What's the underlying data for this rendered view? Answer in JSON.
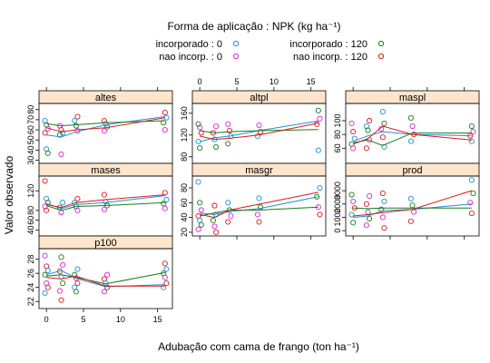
{
  "chart_data": {
    "type": "scatter",
    "title": "Forma de aplicação : NPK (kg ha⁻¹)",
    "xlabel": "Adubação com cama de frango (ton ha⁻¹)",
    "ylabel": "Valor observado",
    "legend": {
      "placement": "top",
      "entries": [
        {
          "label": "incorporado : 0",
          "color": "#1f8fd6"
        },
        {
          "label": "incorporado : 120",
          "color": "#1a7a1a"
        },
        {
          "label": "nao incorp. : 0",
          "color": "#e020e0"
        },
        {
          "label": "nao incorp. : 120",
          "color": "#e01818"
        }
      ]
    },
    "x_levels": [
      0,
      2,
      4,
      8,
      16
    ],
    "xticks": [
      0,
      5,
      10,
      15
    ],
    "xlim": [
      -1,
      17
    ],
    "grid": false,
    "panels": [
      {
        "name": "altes",
        "ylim": [
          27,
          86
        ],
        "yticks": [
          30,
          40,
          50,
          60,
          70,
          80
        ],
        "points": [
          [
            0,
            69
          ],
          [
            0,
            65
          ],
          [
            0,
            61
          ],
          [
            0,
            57
          ],
          [
            0,
            41
          ],
          [
            0,
            37
          ],
          [
            2,
            64
          ],
          [
            2,
            60
          ],
          [
            2,
            57
          ],
          [
            2,
            55
          ],
          [
            2,
            36
          ],
          [
            4,
            73
          ],
          [
            4,
            69
          ],
          [
            4,
            64
          ],
          [
            4,
            59
          ],
          [
            8,
            69
          ],
          [
            8,
            66
          ],
          [
            8,
            63
          ],
          [
            8,
            59
          ],
          [
            16,
            77
          ],
          [
            16,
            72
          ],
          [
            16,
            67
          ],
          [
            16,
            60
          ]
        ],
        "series": [
          {
            "name": "incorporado : 0",
            "color": "#1f8fd6",
            "values": [
              55,
              53,
              58,
              65,
              73
            ]
          },
          {
            "name": "incorporado : 120",
            "color": "#1a7a1a",
            "values": [
              66,
              64,
              65,
              67,
              69
            ]
          },
          {
            "name": "nao incorp. : 120",
            "color": "#e01818",
            "values": [
              62,
              58,
              60,
              62,
              72
            ]
          }
        ]
      },
      {
        "name": "altpl",
        "ylim": [
          68,
          178
        ],
        "yticks": [
          80,
          120,
          160
        ],
        "points": [
          [
            0,
            140
          ],
          [
            0,
            134
          ],
          [
            0,
            124
          ],
          [
            0,
            108
          ],
          [
            0,
            96
          ],
          [
            2,
            136
          ],
          [
            2,
            124
          ],
          [
            2,
            112
          ],
          [
            2,
            98
          ],
          [
            4,
            140
          ],
          [
            4,
            128
          ],
          [
            4,
            118
          ],
          [
            4,
            104
          ],
          [
            8,
            138
          ],
          [
            8,
            126
          ],
          [
            8,
            118
          ],
          [
            16,
            165
          ],
          [
            16,
            150
          ],
          [
            16,
            140
          ],
          [
            16,
            92
          ]
        ],
        "series": [
          {
            "name": "incorporado : 0",
            "color": "#1f8fd6",
            "values": [
              108,
              115,
              118,
              128,
              146
            ]
          },
          {
            "name": "incorporado : 120",
            "color": "#1a7a1a",
            "values": [
              128,
              124,
              126,
              128,
              130
            ]
          },
          {
            "name": "nao incorp. : 120",
            "color": "#e01818",
            "values": [
              118,
              112,
              114,
              120,
              142
            ]
          }
        ]
      },
      {
        "name": "maspl",
        "ylim": [
          38,
          125
        ],
        "yticks": [
          60,
          80,
          100
        ],
        "points": [
          [
            0,
            96
          ],
          [
            0,
            84
          ],
          [
            0,
            74
          ],
          [
            0,
            66
          ],
          [
            0,
            60
          ],
          [
            2,
            100
          ],
          [
            2,
            92
          ],
          [
            2,
            86
          ],
          [
            2,
            72
          ],
          [
            2,
            60
          ],
          [
            4,
            113
          ],
          [
            4,
            96
          ],
          [
            4,
            88
          ],
          [
            4,
            76
          ],
          [
            4,
            62
          ],
          [
            8,
            104
          ],
          [
            8,
            92
          ],
          [
            8,
            80
          ],
          [
            8,
            70
          ],
          [
            16,
            92
          ],
          [
            16,
            84
          ],
          [
            16,
            78
          ],
          [
            16,
            70
          ]
        ],
        "series": [
          {
            "name": "incorporado : 0",
            "color": "#1f8fd6",
            "values": [
              70,
              78,
              84,
              80,
              78
            ]
          },
          {
            "name": "incorporado : 120",
            "color": "#1a7a1a",
            "values": [
              68,
              72,
              64,
              82,
              82
            ]
          },
          {
            "name": "nao incorp. : 120",
            "color": "#e01818",
            "values": [
              66,
              74,
              92,
              80,
              72
            ]
          }
        ]
      },
      {
        "name": "mases",
        "ylim": [
          28,
          150
        ],
        "yticks": [
          40,
          60,
          80,
          120
        ],
        "points": [
          [
            0,
            140
          ],
          [
            0,
            104
          ],
          [
            0,
            96
          ],
          [
            0,
            88
          ],
          [
            0,
            80
          ],
          [
            2,
            96
          ],
          [
            2,
            86
          ],
          [
            2,
            76
          ],
          [
            4,
            104
          ],
          [
            4,
            96
          ],
          [
            4,
            88
          ],
          [
            4,
            80
          ],
          [
            8,
            112
          ],
          [
            8,
            98
          ],
          [
            8,
            90
          ],
          [
            8,
            82
          ],
          [
            16,
            116
          ],
          [
            16,
            102
          ],
          [
            16,
            94
          ],
          [
            16,
            84
          ]
        ],
        "series": [
          {
            "name": "incorporado : 0",
            "color": "#1f8fd6",
            "values": [
              94,
              84,
              92,
              96,
              110
            ]
          },
          {
            "name": "incorporado : 120",
            "color": "#1a7a1a",
            "values": [
              90,
              80,
              88,
              90,
              96
            ]
          },
          {
            "name": "nao incorp. : 120",
            "color": "#e01818",
            "values": [
              92,
              86,
              96,
              102,
              112
            ]
          }
        ]
      },
      {
        "name": "masgr",
        "ylim": [
          15,
          96
        ],
        "yticks": [
          20,
          40,
          60,
          80
        ],
        "points": [
          [
            0,
            88
          ],
          [
            0,
            60
          ],
          [
            0,
            50
          ],
          [
            0,
            42
          ],
          [
            0,
            36
          ],
          [
            0,
            30
          ],
          [
            0,
            24
          ],
          [
            2,
            56
          ],
          [
            2,
            44
          ],
          [
            2,
            36
          ],
          [
            2,
            28
          ],
          [
            2,
            20
          ],
          [
            4,
            60
          ],
          [
            4,
            50
          ],
          [
            4,
            42
          ],
          [
            4,
            34
          ],
          [
            8,
            66
          ],
          [
            8,
            54
          ],
          [
            8,
            44
          ],
          [
            8,
            34
          ],
          [
            16,
            80
          ],
          [
            16,
            68
          ],
          [
            16,
            54
          ],
          [
            16,
            44
          ]
        ],
        "series": [
          {
            "name": "incorporado : 0",
            "color": "#1f8fd6",
            "values": [
              46,
              44,
              48,
              52,
              68
            ]
          },
          {
            "name": "incorporado : 120",
            "color": "#1a7a1a",
            "values": [
              42,
              46,
              50,
              50,
              54
            ]
          },
          {
            "name": "nao incorp. : 120",
            "color": "#e01818",
            "values": [
              44,
              40,
              50,
              58,
              74
            ]
          }
        ]
      },
      {
        "name": "prod",
        "ylim": [
          -400,
          4100
        ],
        "yticks": [
          0,
          1000,
          2000,
          3000
        ],
        "points": [
          [
            0,
            2700
          ],
          [
            0,
            2200
          ],
          [
            0,
            1700
          ],
          [
            0,
            1200
          ],
          [
            0,
            600
          ],
          [
            2,
            2600
          ],
          [
            2,
            2000
          ],
          [
            2,
            1400
          ],
          [
            2,
            900
          ],
          [
            2,
            400
          ],
          [
            4,
            2800
          ],
          [
            4,
            2200
          ],
          [
            4,
            1600
          ],
          [
            4,
            1000
          ],
          [
            4,
            200
          ],
          [
            8,
            2400
          ],
          [
            8,
            1900
          ],
          [
            8,
            1400
          ],
          [
            8,
            700
          ],
          [
            16,
            3800
          ],
          [
            16,
            2800
          ],
          [
            16,
            2100
          ],
          [
            16,
            1300
          ]
        ],
        "series": [
          {
            "name": "incorporado : 0",
            "color": "#1f8fd6",
            "values": [
              1000,
              1100,
              1500,
              1600,
              2000
            ]
          },
          {
            "name": "incorporado : 120",
            "color": "#1a7a1a",
            "values": [
              1700,
              1650,
              1700,
              1700,
              1700
            ]
          },
          {
            "name": "nao incorp. : 120",
            "color": "#e01818",
            "values": [
              1100,
              1200,
              1350,
              1600,
              3000
            ]
          }
        ]
      },
      {
        "name": "p100",
        "ylim": [
          21,
          29.5
        ],
        "yticks": [
          22,
          24,
          26,
          28
        ],
        "points": [
          [
            0,
            28.5
          ],
          [
            0,
            27
          ],
          [
            0,
            26.4
          ],
          [
            0,
            25.8
          ],
          [
            0,
            24.6
          ],
          [
            0,
            24
          ],
          [
            0,
            23.2
          ],
          [
            2,
            28.3
          ],
          [
            2,
            27.2
          ],
          [
            2,
            26.3
          ],
          [
            2,
            25.5
          ],
          [
            2,
            24.6
          ],
          [
            2,
            23.5
          ],
          [
            2,
            22.2
          ],
          [
            4,
            26.6
          ],
          [
            4,
            25.8
          ],
          [
            4,
            25.3
          ],
          [
            4,
            24.6
          ],
          [
            4,
            24
          ],
          [
            4,
            23.4
          ],
          [
            8,
            25.8
          ],
          [
            8,
            25.2
          ],
          [
            8,
            24.6
          ],
          [
            8,
            24
          ],
          [
            8,
            23.4
          ],
          [
            16,
            27.4
          ],
          [
            16,
            26.6
          ],
          [
            16,
            26
          ],
          [
            16,
            25.4
          ],
          [
            16,
            24.6
          ],
          [
            16,
            24
          ]
        ],
        "series": [
          {
            "name": "incorporado : 0",
            "color": "#1f8fd6",
            "values": [
              25.8,
              26.4,
              25.3,
              24.1,
              24.4
            ]
          },
          {
            "name": "incorporado : 120",
            "color": "#1a7a1a",
            "values": [
              25.6,
              25.8,
              25.4,
              24.5,
              26.1
            ]
          },
          {
            "name": "nao incorp. : 120",
            "color": "#e01818",
            "values": [
              25.4,
              25.2,
              25.6,
              24.2,
              24.2
            ]
          }
        ]
      }
    ]
  }
}
